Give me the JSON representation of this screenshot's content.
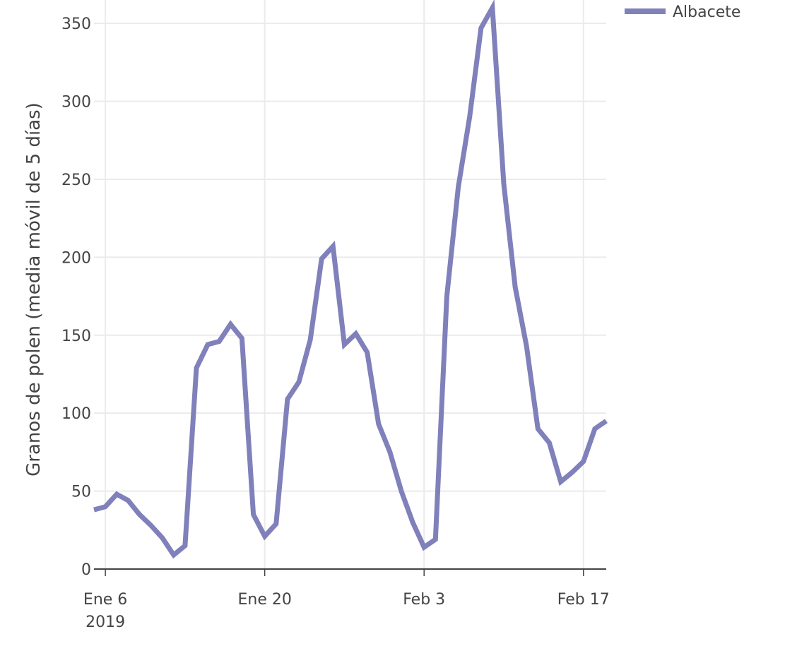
{
  "chart_data": {
    "type": "line",
    "title": "",
    "xlabel": "",
    "ylabel": "Granos de polen (media móvil de 5 días)",
    "ylim": [
      0,
      365
    ],
    "xlim": [
      "2019-01-05",
      "2019-02-19"
    ],
    "y_ticks": [
      {
        "value": 0,
        "label": "0"
      },
      {
        "value": 50,
        "label": "50"
      },
      {
        "value": 100,
        "label": "100"
      },
      {
        "value": 150,
        "label": "150"
      },
      {
        "value": 200,
        "label": "200"
      },
      {
        "value": 250,
        "label": "250"
      },
      {
        "value": 300,
        "label": "300"
      },
      {
        "value": 350,
        "label": "350"
      }
    ],
    "x_ticks": [
      {
        "value": "2019-01-06",
        "label": "Ene 6",
        "sublabel": "2019"
      },
      {
        "value": "2019-01-20",
        "label": "Ene 20",
        "sublabel": ""
      },
      {
        "value": "2019-02-03",
        "label": "Feb 3",
        "sublabel": ""
      },
      {
        "value": "2019-02-17",
        "label": "Feb 17",
        "sublabel": ""
      }
    ],
    "grid": true,
    "legend_position": "top-right",
    "series": [
      {
        "name": "Albacete",
        "color": "#8080BB",
        "x": [
          "2019-01-05",
          "2019-01-06",
          "2019-01-07",
          "2019-01-08",
          "2019-01-09",
          "2019-01-10",
          "2019-01-11",
          "2019-01-12",
          "2019-01-13",
          "2019-01-14",
          "2019-01-15",
          "2019-01-16",
          "2019-01-17",
          "2019-01-18",
          "2019-01-19",
          "2019-01-20",
          "2019-01-21",
          "2019-01-22",
          "2019-01-23",
          "2019-01-24",
          "2019-01-25",
          "2019-01-26",
          "2019-01-27",
          "2019-01-28",
          "2019-01-29",
          "2019-01-30",
          "2019-01-31",
          "2019-02-01",
          "2019-02-02",
          "2019-02-03",
          "2019-02-04",
          "2019-02-05",
          "2019-02-06",
          "2019-02-07",
          "2019-02-08",
          "2019-02-09",
          "2019-02-10",
          "2019-02-11",
          "2019-02-12",
          "2019-02-13",
          "2019-02-14",
          "2019-02-15",
          "2019-02-16",
          "2019-02-17",
          "2019-02-18",
          "2019-02-19"
        ],
        "values": [
          38,
          40,
          48,
          44,
          35,
          28,
          20,
          9,
          15,
          129,
          144,
          146,
          157,
          148,
          35,
          21,
          29,
          109,
          120,
          147,
          199,
          207,
          144,
          151,
          139,
          93,
          75,
          50,
          30,
          14,
          19,
          175,
          245,
          290,
          347,
          360,
          247,
          181,
          143,
          90,
          81,
          56,
          62,
          69,
          90,
          95
        ]
      }
    ]
  }
}
